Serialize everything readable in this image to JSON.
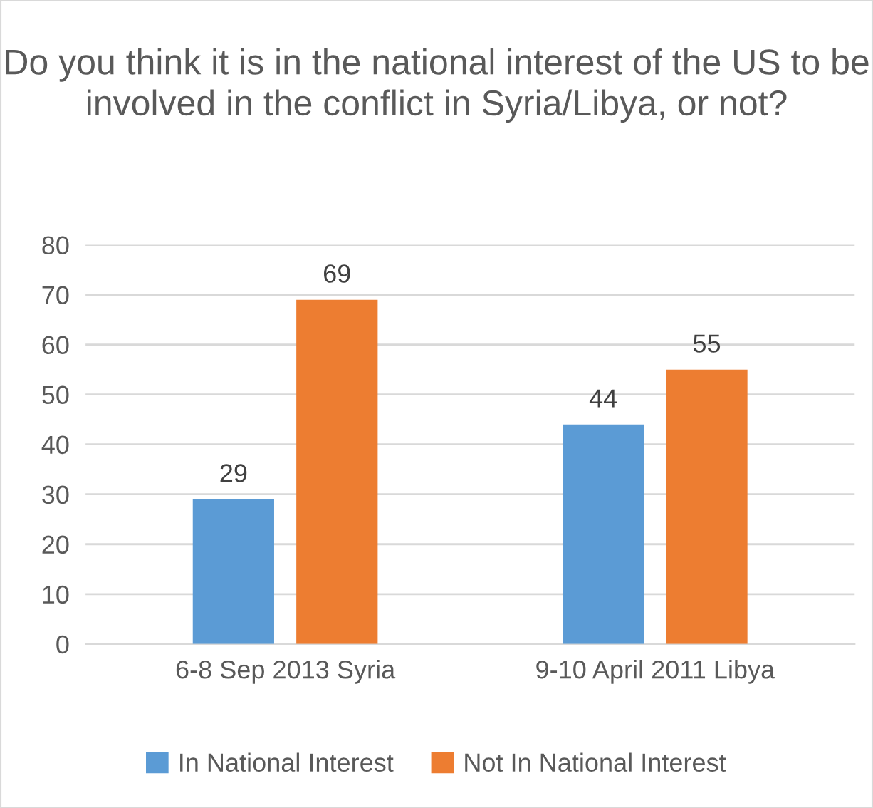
{
  "chart_data": {
    "type": "bar",
    "title": "Do you think it is in the national interest of the US to be involved in the conflict in Syria/Libya, or not?",
    "categories": [
      "6-8 Sep 2013 Syria",
      "9-10 April 2011 Libya"
    ],
    "series": [
      {
        "name": "In National Interest",
        "color": "#5b9bd5",
        "values": [
          29,
          44
        ]
      },
      {
        "name": "Not In National Interest",
        "color": "#ed7d31",
        "values": [
          69,
          55
        ]
      }
    ],
    "ylim": [
      0,
      80
    ],
    "yticks": [
      0,
      10,
      20,
      30,
      40,
      50,
      60,
      70,
      80
    ],
    "grid": "y",
    "legend": "bottom",
    "data_labels": true
  }
}
